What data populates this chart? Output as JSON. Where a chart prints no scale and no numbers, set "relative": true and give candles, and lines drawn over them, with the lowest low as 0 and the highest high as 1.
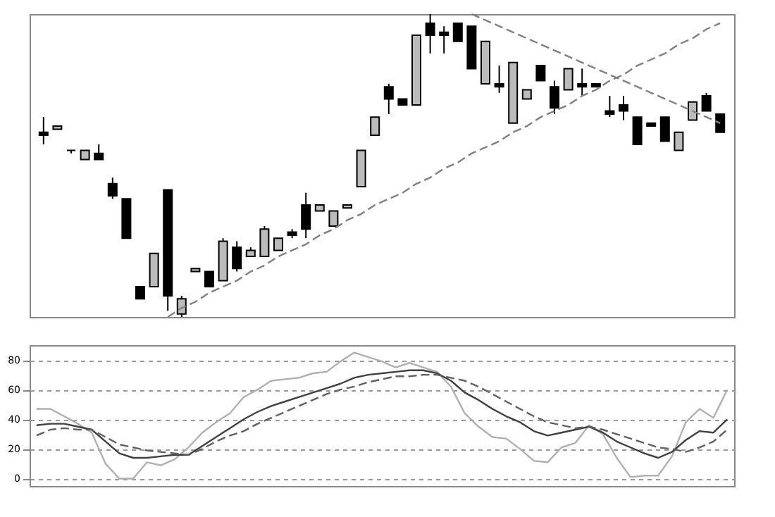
{
  "chart_data": [
    {
      "type": "candlestick",
      "relative": true,
      "categories": [
        null,
        null,
        null,
        null,
        null,
        null,
        null,
        null,
        null,
        null,
        null,
        null,
        null,
        null,
        null,
        null,
        null,
        null,
        null,
        null,
        null,
        null,
        null,
        null,
        null,
        null,
        null,
        null,
        null,
        null,
        null,
        null,
        null,
        null,
        null,
        null,
        null,
        null,
        null,
        null,
        null,
        null,
        null,
        null,
        null,
        null,
        null,
        null,
        null,
        null
      ],
      "ohlc": [
        [
          0.61,
          0.66,
          0.57,
          0.6
        ],
        [
          0.62,
          0.63,
          0.62,
          0.63
        ],
        [
          0.55,
          0.55,
          0.54,
          0.55
        ],
        [
          0.52,
          0.55,
          0.52,
          0.55
        ],
        [
          0.54,
          0.57,
          0.52,
          0.52
        ],
        [
          0.44,
          0.46,
          0.39,
          0.4
        ],
        [
          0.39,
          0.39,
          0.26,
          0.26
        ],
        [
          0.1,
          0.1,
          0.06,
          0.06
        ],
        [
          0.1,
          0.21,
          0.1,
          0.21
        ],
        [
          0.42,
          0.42,
          0.02,
          0.07
        ],
        [
          0.01,
          0.07,
          0,
          0.06
        ],
        [
          0.15,
          0.16,
          0.15,
          0.16
        ],
        [
          0.15,
          0.15,
          0.1,
          0.1
        ],
        [
          0.12,
          0.26,
          0.12,
          0.25
        ],
        [
          0.23,
          0.25,
          0.15,
          0.16
        ],
        [
          0.2,
          0.23,
          0.2,
          0.22
        ],
        [
          0.2,
          0.3,
          0.2,
          0.29
        ],
        [
          0.22,
          0.26,
          0.22,
          0.26
        ],
        [
          0.28,
          0.29,
          0.26,
          0.27
        ],
        [
          0.37,
          0.41,
          0.26,
          0.29
        ],
        [
          0.35,
          0.37,
          0.35,
          0.37
        ],
        [
          0.3,
          0.35,
          0.3,
          0.35
        ],
        [
          0.36,
          0.37,
          0.36,
          0.37
        ],
        [
          0.43,
          0.55,
          0.43,
          0.55
        ],
        [
          0.6,
          0.66,
          0.6,
          0.66
        ],
        [
          0.76,
          0.77,
          0.67,
          0.72
        ],
        [
          0.72,
          0.72,
          0.7,
          0.7
        ],
        [
          0.7,
          0.93,
          0.7,
          0.93
        ],
        [
          0.97,
          1,
          0.87,
          0.93
        ],
        [
          0.94,
          0.96,
          0.87,
          0.93
        ],
        [
          0.97,
          0.97,
          0.91,
          0.91
        ],
        [
          0.96,
          0.96,
          0.82,
          0.82
        ],
        [
          0.77,
          0.91,
          0.77,
          0.91
        ],
        [
          0.77,
          0.83,
          0.74,
          0.76
        ],
        [
          0.64,
          0.84,
          0.64,
          0.84
        ],
        [
          0.72,
          0.75,
          0.72,
          0.75
        ],
        [
          0.83,
          0.83,
          0.78,
          0.78
        ],
        [
          0.76,
          0.78,
          0.67,
          0.69
        ],
        [
          0.75,
          0.82,
          0.75,
          0.82
        ],
        [
          0.77,
          0.82,
          0.73,
          0.76
        ],
        [
          0.77,
          0.77,
          0.76,
          0.76
        ],
        [
          0.68,
          0.73,
          0.66,
          0.67
        ],
        [
          0.7,
          0.73,
          0.65,
          0.68
        ],
        [
          0.66,
          0.66,
          0.57,
          0.57
        ],
        [
          0.64,
          0.64,
          0.63,
          0.63
        ],
        [
          0.66,
          0.66,
          0.58,
          0.58
        ],
        [
          0.55,
          0.61,
          0.55,
          0.61
        ],
        [
          0.65,
          0.71,
          0.65,
          0.71
        ],
        [
          0.73,
          0.74,
          0.68,
          0.68
        ],
        [
          0.67,
          0.67,
          0.61,
          0.61
        ]
      ],
      "series": [
        {
          "type": "line",
          "color": "#808080",
          "line_style": "dashed",
          "values": [
            null,
            null,
            null,
            null,
            null,
            null,
            null,
            null,
            null,
            0.0,
            0.03,
            0.05,
            0.08,
            0.1,
            0.12,
            0.15,
            0.17,
            0.2,
            0.22,
            0.24,
            0.27,
            0.29,
            0.32,
            0.34,
            0.37,
            0.39,
            0.41,
            0.44,
            0.46,
            0.49,
            0.51,
            0.54,
            0.56,
            0.58,
            0.61,
            0.63,
            0.66,
            0.68,
            0.7,
            0.73,
            0.75,
            0.78,
            0.8,
            0.83,
            0.85,
            0.87,
            0.9,
            0.92,
            0.95,
            0.97
          ]
        },
        {
          "type": "line",
          "color": "#808080",
          "line_style": "dashed",
          "values": [
            null,
            null,
            null,
            null,
            null,
            null,
            null,
            null,
            null,
            null,
            null,
            null,
            null,
            null,
            null,
            null,
            null,
            null,
            null,
            null,
            null,
            null,
            null,
            null,
            null,
            null,
            null,
            null,
            null,
            null,
            null,
            1.0,
            0.98,
            0.96,
            0.94,
            0.92,
            0.9,
            0.88,
            0.86,
            0.84,
            0.82,
            0.8,
            0.78,
            0.76,
            0.74,
            0.72,
            0.7,
            0.68,
            0.66,
            0.64
          ]
        }
      ]
    },
    {
      "type": "line",
      "grid": "y",
      "ylim": [
        -5,
        90
      ],
      "yticks": [
        0,
        20,
        40,
        60,
        80
      ],
      "categories": [
        null,
        null,
        null,
        null,
        null,
        null,
        null,
        null,
        null,
        null,
        null,
        null,
        null,
        null,
        null,
        null,
        null,
        null,
        null,
        null,
        null,
        null,
        null,
        null,
        null,
        null,
        null,
        null,
        null,
        null,
        null,
        null,
        null,
        null,
        null,
        null,
        null,
        null,
        null,
        null,
        null,
        null,
        null,
        null,
        null,
        null,
        null,
        null,
        null,
        null,
        null
      ],
      "series": [
        {
          "color": "#b0b0b0",
          "line_style": "solid",
          "values": [
            47,
            47,
            42,
            37,
            31,
            10,
            0,
            0,
            11,
            9,
            13,
            21,
            31,
            38,
            44,
            55,
            60,
            66,
            67,
            68,
            71,
            72,
            79,
            85,
            82,
            79,
            75,
            78,
            75,
            72,
            62,
            44,
            35,
            28,
            27,
            20,
            12,
            11,
            21,
            24,
            36,
            30,
            14,
            1,
            2,
            2,
            15,
            38,
            47,
            41,
            60
          ]
        },
        {
          "color": "#404040",
          "line_style": "solid",
          "values": [
            36,
            37,
            37,
            35,
            33,
            25,
            17,
            14,
            14,
            15,
            16,
            16,
            22,
            28,
            34,
            40,
            45,
            49,
            52,
            55,
            58,
            61,
            64,
            68,
            70,
            71,
            72,
            73,
            73,
            71,
            66,
            58,
            53,
            47,
            42,
            38,
            32,
            29,
            31,
            33,
            35,
            31,
            25,
            21,
            17,
            14,
            18,
            26,
            32,
            31,
            40
          ]
        },
        {
          "color": "#606060",
          "line_style": "dashed",
          "values": [
            29,
            33,
            34,
            33,
            33,
            28,
            23,
            21,
            19,
            18,
            17,
            16,
            20,
            25,
            29,
            32,
            37,
            41,
            45,
            49,
            53,
            57,
            60,
            62,
            65,
            67,
            69,
            69,
            70,
            70,
            68,
            66,
            62,
            57,
            52,
            47,
            42,
            38,
            36,
            34,
            35,
            33,
            30,
            27,
            24,
            21,
            20,
            18,
            21,
            25,
            33
          ]
        }
      ]
    }
  ]
}
